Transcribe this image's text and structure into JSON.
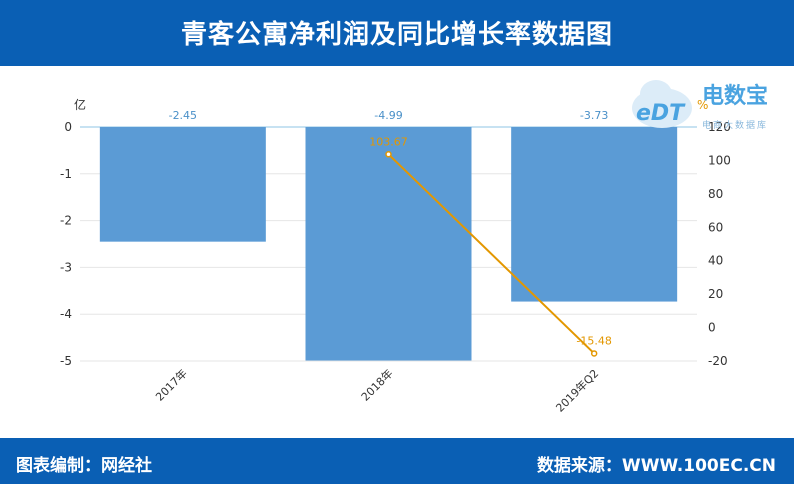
{
  "header": {
    "title": "青客公寓净利润及同比增长率数据图"
  },
  "footer": {
    "left": "图表编制：网经社",
    "right": "数据来源：WWW.100EC.CN"
  },
  "logo": {
    "brand": "电数宝",
    "sub": "电商大数据库",
    "icon_text": "eDT"
  },
  "colors": {
    "bar": "#5b9bd5",
    "line": "#e39700",
    "label_bar": "#4a90c8",
    "axis_text": "#333333",
    "header_bg": "#0a5fb4"
  },
  "chart_data": {
    "type": "bar",
    "categories": [
      "2017年",
      "2018年",
      "2019年Q2"
    ],
    "series": [
      {
        "name": "净利润",
        "type": "bar",
        "axis": "left",
        "values": [
          -2.45,
          -4.99,
          -3.73
        ],
        "labels": [
          "-2.45",
          "-4.99",
          "-3.73"
        ]
      },
      {
        "name": "同比增长率",
        "type": "line",
        "axis": "right",
        "values": [
          null,
          103.67,
          -15.48
        ],
        "labels": [
          "",
          "103.67",
          "-15.48"
        ]
      }
    ],
    "left_axis": {
      "unit": "亿",
      "min": -5,
      "max": 0,
      "ticks": [
        "0",
        "-1",
        "-2",
        "-3",
        "-4",
        "-5"
      ]
    },
    "right_axis": {
      "unit": "%",
      "min": -20,
      "max": 120,
      "ticks": [
        "120",
        "100",
        "80",
        "60",
        "40",
        "20",
        "0",
        "-20"
      ]
    },
    "grid": true
  }
}
